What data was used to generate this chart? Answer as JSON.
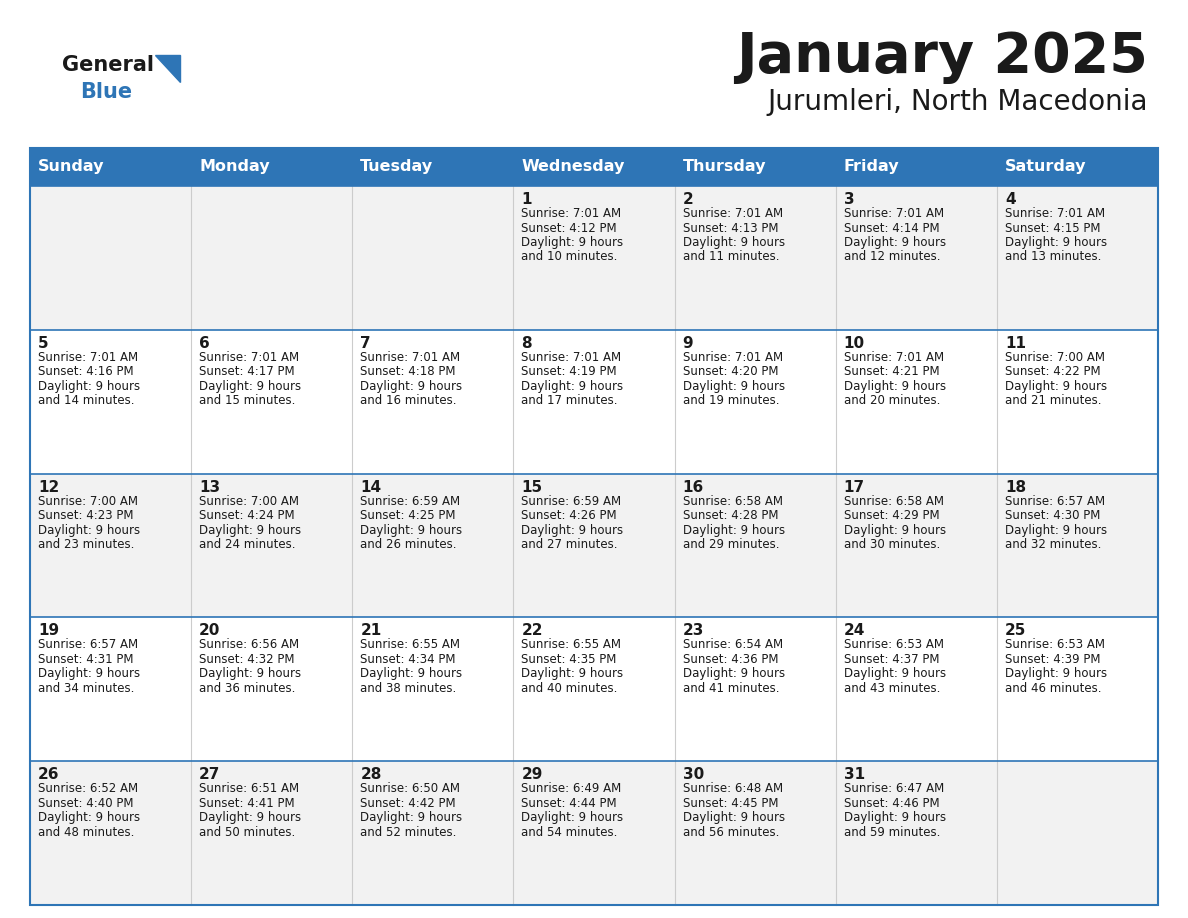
{
  "title": "January 2025",
  "subtitle": "Jurumleri, North Macedonia",
  "header_color": "#2E75B6",
  "header_text_color": "#FFFFFF",
  "cell_bg_odd": "#F2F2F2",
  "cell_bg_even": "#FFFFFF",
  "line_color": "#2E75B6",
  "text_color": "#1a1a1a",
  "logo_general_color": "#1a1a1a",
  "logo_blue_color": "#2E75B6",
  "day_headers": [
    "Sunday",
    "Monday",
    "Tuesday",
    "Wednesday",
    "Thursday",
    "Friday",
    "Saturday"
  ],
  "days": [
    {
      "day": 1,
      "col": 3,
      "row": 0,
      "sunrise": "7:01 AM",
      "sunset": "4:12 PM",
      "daylight": "9 hours",
      "daylight2": "and 10 minutes."
    },
    {
      "day": 2,
      "col": 4,
      "row": 0,
      "sunrise": "7:01 AM",
      "sunset": "4:13 PM",
      "daylight": "9 hours",
      "daylight2": "and 11 minutes."
    },
    {
      "day": 3,
      "col": 5,
      "row": 0,
      "sunrise": "7:01 AM",
      "sunset": "4:14 PM",
      "daylight": "9 hours",
      "daylight2": "and 12 minutes."
    },
    {
      "day": 4,
      "col": 6,
      "row": 0,
      "sunrise": "7:01 AM",
      "sunset": "4:15 PM",
      "daylight": "9 hours",
      "daylight2": "and 13 minutes."
    },
    {
      "day": 5,
      "col": 0,
      "row": 1,
      "sunrise": "7:01 AM",
      "sunset": "4:16 PM",
      "daylight": "9 hours",
      "daylight2": "and 14 minutes."
    },
    {
      "day": 6,
      "col": 1,
      "row": 1,
      "sunrise": "7:01 AM",
      "sunset": "4:17 PM",
      "daylight": "9 hours",
      "daylight2": "and 15 minutes."
    },
    {
      "day": 7,
      "col": 2,
      "row": 1,
      "sunrise": "7:01 AM",
      "sunset": "4:18 PM",
      "daylight": "9 hours",
      "daylight2": "and 16 minutes."
    },
    {
      "day": 8,
      "col": 3,
      "row": 1,
      "sunrise": "7:01 AM",
      "sunset": "4:19 PM",
      "daylight": "9 hours",
      "daylight2": "and 17 minutes."
    },
    {
      "day": 9,
      "col": 4,
      "row": 1,
      "sunrise": "7:01 AM",
      "sunset": "4:20 PM",
      "daylight": "9 hours",
      "daylight2": "and 19 minutes."
    },
    {
      "day": 10,
      "col": 5,
      "row": 1,
      "sunrise": "7:01 AM",
      "sunset": "4:21 PM",
      "daylight": "9 hours",
      "daylight2": "and 20 minutes."
    },
    {
      "day": 11,
      "col": 6,
      "row": 1,
      "sunrise": "7:00 AM",
      "sunset": "4:22 PM",
      "daylight": "9 hours",
      "daylight2": "and 21 minutes."
    },
    {
      "day": 12,
      "col": 0,
      "row": 2,
      "sunrise": "7:00 AM",
      "sunset": "4:23 PM",
      "daylight": "9 hours",
      "daylight2": "and 23 minutes."
    },
    {
      "day": 13,
      "col": 1,
      "row": 2,
      "sunrise": "7:00 AM",
      "sunset": "4:24 PM",
      "daylight": "9 hours",
      "daylight2": "and 24 minutes."
    },
    {
      "day": 14,
      "col": 2,
      "row": 2,
      "sunrise": "6:59 AM",
      "sunset": "4:25 PM",
      "daylight": "9 hours",
      "daylight2": "and 26 minutes."
    },
    {
      "day": 15,
      "col": 3,
      "row": 2,
      "sunrise": "6:59 AM",
      "sunset": "4:26 PM",
      "daylight": "9 hours",
      "daylight2": "and 27 minutes."
    },
    {
      "day": 16,
      "col": 4,
      "row": 2,
      "sunrise": "6:58 AM",
      "sunset": "4:28 PM",
      "daylight": "9 hours",
      "daylight2": "and 29 minutes."
    },
    {
      "day": 17,
      "col": 5,
      "row": 2,
      "sunrise": "6:58 AM",
      "sunset": "4:29 PM",
      "daylight": "9 hours",
      "daylight2": "and 30 minutes."
    },
    {
      "day": 18,
      "col": 6,
      "row": 2,
      "sunrise": "6:57 AM",
      "sunset": "4:30 PM",
      "daylight": "9 hours",
      "daylight2": "and 32 minutes."
    },
    {
      "day": 19,
      "col": 0,
      "row": 3,
      "sunrise": "6:57 AM",
      "sunset": "4:31 PM",
      "daylight": "9 hours",
      "daylight2": "and 34 minutes."
    },
    {
      "day": 20,
      "col": 1,
      "row": 3,
      "sunrise": "6:56 AM",
      "sunset": "4:32 PM",
      "daylight": "9 hours",
      "daylight2": "and 36 minutes."
    },
    {
      "day": 21,
      "col": 2,
      "row": 3,
      "sunrise": "6:55 AM",
      "sunset": "4:34 PM",
      "daylight": "9 hours",
      "daylight2": "and 38 minutes."
    },
    {
      "day": 22,
      "col": 3,
      "row": 3,
      "sunrise": "6:55 AM",
      "sunset": "4:35 PM",
      "daylight": "9 hours",
      "daylight2": "and 40 minutes."
    },
    {
      "day": 23,
      "col": 4,
      "row": 3,
      "sunrise": "6:54 AM",
      "sunset": "4:36 PM",
      "daylight": "9 hours",
      "daylight2": "and 41 minutes."
    },
    {
      "day": 24,
      "col": 5,
      "row": 3,
      "sunrise": "6:53 AM",
      "sunset": "4:37 PM",
      "daylight": "9 hours",
      "daylight2": "and 43 minutes."
    },
    {
      "day": 25,
      "col": 6,
      "row": 3,
      "sunrise": "6:53 AM",
      "sunset": "4:39 PM",
      "daylight": "9 hours",
      "daylight2": "and 46 minutes."
    },
    {
      "day": 26,
      "col": 0,
      "row": 4,
      "sunrise": "6:52 AM",
      "sunset": "4:40 PM",
      "daylight": "9 hours",
      "daylight2": "and 48 minutes."
    },
    {
      "day": 27,
      "col": 1,
      "row": 4,
      "sunrise": "6:51 AM",
      "sunset": "4:41 PM",
      "daylight": "9 hours",
      "daylight2": "and 50 minutes."
    },
    {
      "day": 28,
      "col": 2,
      "row": 4,
      "sunrise": "6:50 AM",
      "sunset": "4:42 PM",
      "daylight": "9 hours",
      "daylight2": "and 52 minutes."
    },
    {
      "day": 29,
      "col": 3,
      "row": 4,
      "sunrise": "6:49 AM",
      "sunset": "4:44 PM",
      "daylight": "9 hours",
      "daylight2": "and 54 minutes."
    },
    {
      "day": 30,
      "col": 4,
      "row": 4,
      "sunrise": "6:48 AM",
      "sunset": "4:45 PM",
      "daylight": "9 hours",
      "daylight2": "and 56 minutes."
    },
    {
      "day": 31,
      "col": 5,
      "row": 4,
      "sunrise": "6:47 AM",
      "sunset": "4:46 PM",
      "daylight": "9 hours",
      "daylight2": "and 59 minutes."
    }
  ]
}
